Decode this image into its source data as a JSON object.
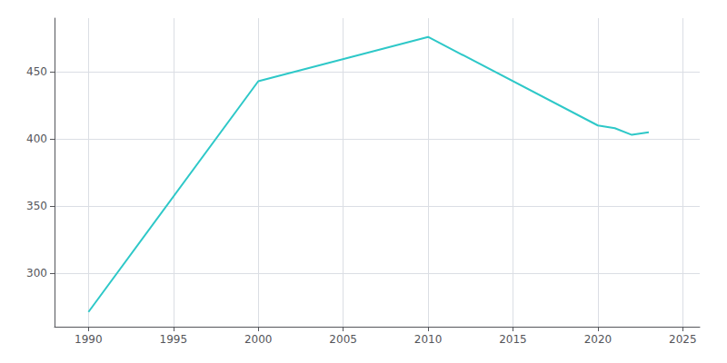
{
  "chart_data": {
    "type": "line",
    "x": [
      1990,
      2000,
      2010,
      2020,
      2021,
      2022,
      2023
    ],
    "values": [
      271,
      443,
      476,
      410,
      408,
      403,
      405
    ],
    "color": "#2ec8c8",
    "xlim": [
      1988,
      2026
    ],
    "ylim": [
      260,
      490
    ],
    "xticks": [
      1990,
      1995,
      2000,
      2005,
      2010,
      2015,
      2020,
      2025
    ],
    "yticks": [
      300,
      350,
      400,
      450
    ],
    "grid": true
  }
}
